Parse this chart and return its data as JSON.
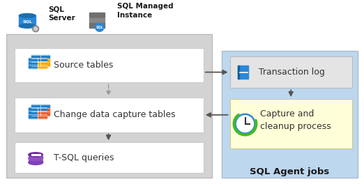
{
  "bg_color": "#ffffff",
  "left_panel_color": "#d3d3d3",
  "right_panel_color": "#bdd7ee",
  "box_white": "#ffffff",
  "box_yellow": "#fefed8",
  "box_gray_tlog": "#e4e4e4",
  "title_sql_agent": "SQL Agent jobs",
  "box_labels": [
    "Source tables",
    "Change data capture tables",
    "T-SQL queries"
  ],
  "transaction_log_label": "Transaction log",
  "capture_label": "Capture and\ncleanup process",
  "sql_server_label": "SQL\nServer",
  "sql_managed_label": "SQL Managed\nInstance",
  "arrow_color": "#555555",
  "dashed_color": "#999999"
}
